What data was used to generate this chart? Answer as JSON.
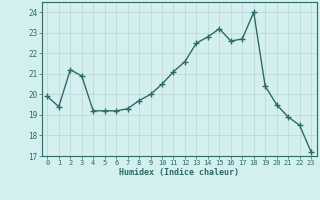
{
  "x": [
    0,
    1,
    2,
    3,
    4,
    5,
    6,
    7,
    8,
    9,
    10,
    11,
    12,
    13,
    14,
    15,
    16,
    17,
    18,
    19,
    20,
    21,
    22,
    23
  ],
  "y": [
    19.9,
    19.4,
    21.2,
    20.9,
    19.2,
    19.2,
    19.2,
    19.3,
    19.7,
    20.0,
    20.5,
    21.1,
    21.6,
    22.5,
    22.8,
    23.2,
    22.6,
    22.7,
    24.0,
    20.4,
    19.5,
    18.9,
    18.5,
    17.2
  ],
  "xlabel": "Humidex (Indice chaleur)",
  "ylim": [
    17,
    24.5
  ],
  "yticks": [
    17,
    18,
    19,
    20,
    21,
    22,
    23,
    24
  ],
  "xticks": [
    0,
    1,
    2,
    3,
    4,
    5,
    6,
    7,
    8,
    9,
    10,
    11,
    12,
    13,
    14,
    15,
    16,
    17,
    18,
    19,
    20,
    21,
    22,
    23
  ],
  "line_color": "#2d6b65",
  "marker": "+",
  "marker_size": 4,
  "bg_color": "#d4efef",
  "grid_color": "#b8d8d4",
  "axes_color": "#2d6b65",
  "tick_color": "#2d6b65",
  "label_color": "#2d6b65"
}
